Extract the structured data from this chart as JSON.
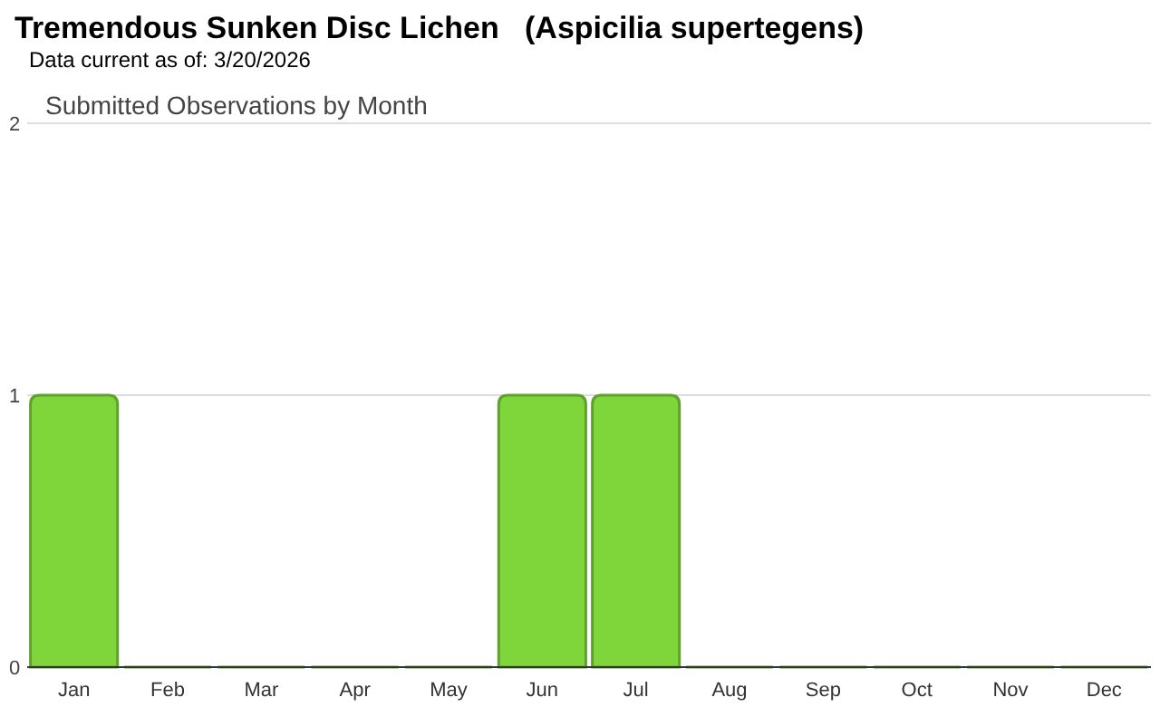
{
  "chart_data": {
    "type": "bar",
    "title": "Tremendous Sunken Disc Lichen   (Aspicilia supertegens)",
    "subtitle": "Data current as of: 3/20/2026",
    "annotations": [
      "Submitted Observations by Month"
    ],
    "categories": [
      "Jan",
      "Feb",
      "Mar",
      "Apr",
      "May",
      "Jun",
      "Jul",
      "Aug",
      "Sep",
      "Oct",
      "Nov",
      "Dec"
    ],
    "values": [
      1,
      0,
      0,
      0,
      0,
      1,
      1,
      0,
      0,
      0,
      0,
      0
    ],
    "color": "#7fd63a",
    "ylim": [
      0,
      2
    ],
    "yticks": [
      0,
      1,
      2
    ],
    "grid": "y"
  }
}
